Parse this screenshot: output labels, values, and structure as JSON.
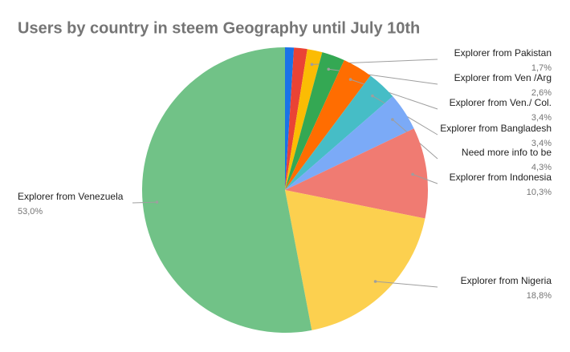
{
  "chart_data": {
    "type": "pie",
    "title": "Users by country in steem Geography until July 10th",
    "categories": [
      null,
      null,
      "Explorer from Pakistan",
      "Explorer from Ven /Arg",
      "Explorer from Ven./ Col.",
      "Explorer from Bangladesh",
      "Need more info to be",
      "Explorer from Indonesia",
      "Explorer from Nigeria",
      "Explorer from Venezuela"
    ],
    "values": [
      1.0,
      1.5,
      1.7,
      2.6,
      3.4,
      3.4,
      4.3,
      10.3,
      18.8,
      53.0
    ],
    "value_labels": [
      null,
      null,
      "1,7%",
      "2,6%",
      "3,4%",
      "3,4%",
      "4,3%",
      "10,3%",
      "18,8%",
      "53,0%"
    ],
    "colors": [
      "#1a73e8",
      "#ea4335",
      "#fbbc04",
      "#34a853",
      "#ff6d01",
      "#46bdc6",
      "#7baaf7",
      "#f07b72",
      "#fcd04f",
      "#71c287"
    ]
  }
}
